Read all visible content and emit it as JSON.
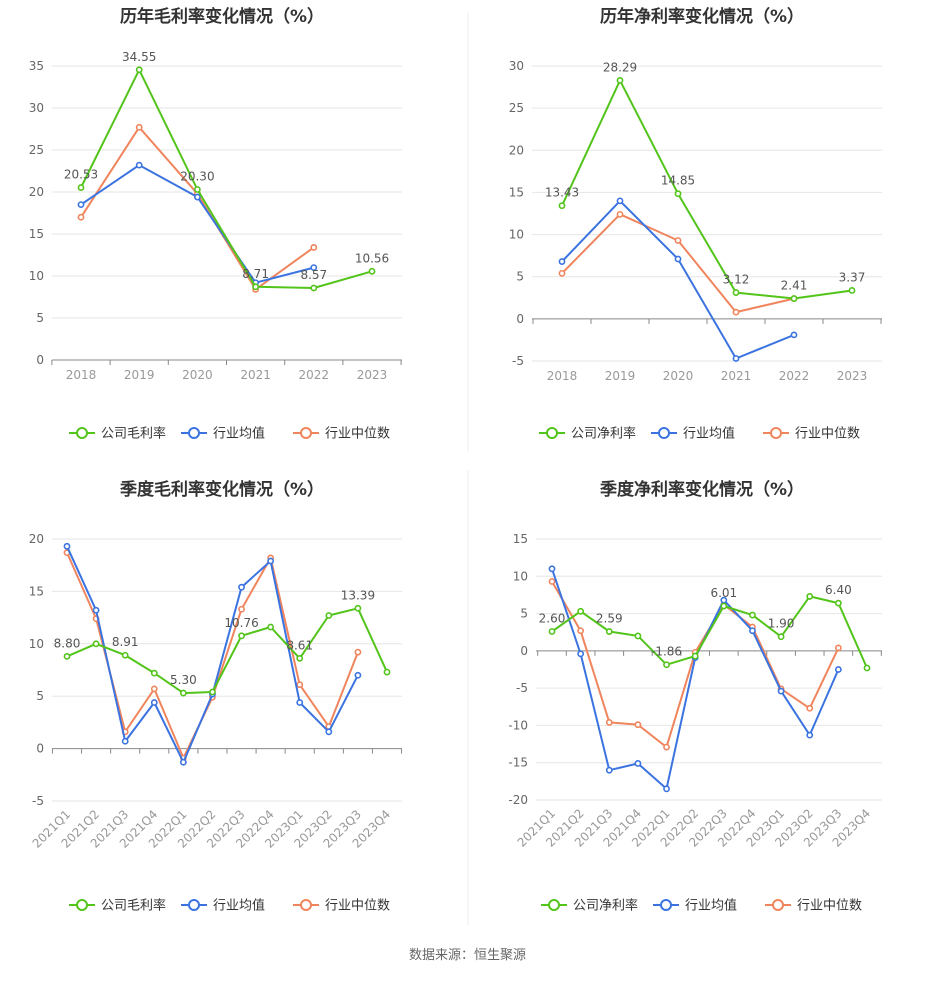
{
  "footer": "数据来源：恒生聚源",
  "colors": {
    "company": "#52c41a",
    "avg": "#3b73e0",
    "median": "#f0855d"
  },
  "chart_data": [
    {
      "type": "line",
      "title": "历年毛利率变化情况（%）",
      "categories": [
        "2018",
        "2019",
        "2020",
        "2021",
        "2022",
        "2023"
      ],
      "ylim": [
        0,
        35
      ],
      "yticks": [
        0,
        5,
        10,
        15,
        20,
        25,
        30,
        35
      ],
      "series": [
        {
          "name": "公司毛利率",
          "values": [
            20.53,
            34.55,
            20.3,
            8.71,
            8.57,
            10.56
          ],
          "labels": [
            "20.53",
            "34.55",
            "20.30",
            "8.71",
            "8.57",
            "10.56"
          ]
        },
        {
          "name": "行业均值",
          "values": [
            18.5,
            23.2,
            19.4,
            9.2,
            11.0,
            null
          ]
        },
        {
          "name": "行业中位数",
          "values": [
            17.0,
            27.7,
            19.8,
            8.4,
            13.4,
            null
          ]
        }
      ],
      "grid": true,
      "legend": "bottom"
    },
    {
      "type": "line",
      "title": "历年净利率变化情况（%）",
      "categories": [
        "2018",
        "2019",
        "2020",
        "2021",
        "2022",
        "2023"
      ],
      "ylim": [
        -5,
        30
      ],
      "yticks": [
        -5,
        0,
        5,
        10,
        15,
        20,
        25,
        30
      ],
      "series": [
        {
          "name": "公司净利率",
          "values": [
            13.43,
            28.29,
            14.85,
            3.12,
            2.41,
            3.37
          ],
          "labels": [
            "13.43",
            "28.29",
            "14.85",
            "3.12",
            "2.41",
            "3.37"
          ]
        },
        {
          "name": "行业均值",
          "values": [
            6.8,
            14.0,
            7.1,
            -4.7,
            -1.9,
            null
          ]
        },
        {
          "name": "行业中位数",
          "values": [
            5.4,
            12.4,
            9.3,
            0.8,
            2.4,
            null
          ]
        }
      ],
      "grid": true,
      "legend": "bottom"
    },
    {
      "type": "line",
      "title": "季度毛利率变化情况（%）",
      "categories": [
        "2021Q1",
        "2021Q2",
        "2021Q3",
        "2021Q4",
        "2022Q1",
        "2022Q2",
        "2022Q3",
        "2022Q4",
        "2023Q1",
        "2023Q2",
        "2023Q3",
        "2023Q4"
      ],
      "ylim": [
        -5,
        20
      ],
      "yticks": [
        -5,
        0,
        5,
        10,
        15,
        20
      ],
      "series": [
        {
          "name": "公司毛利率",
          "values": [
            8.8,
            10.0,
            8.91,
            7.2,
            5.3,
            5.4,
            10.76,
            11.6,
            8.61,
            12.7,
            13.39,
            7.3
          ],
          "labels": [
            "8.80",
            "",
            "8.91",
            "",
            "5.30",
            "",
            "10.76",
            "",
            "8.61",
            "",
            "13.39",
            ""
          ]
        },
        {
          "name": "行业均值",
          "values": [
            19.3,
            13.2,
            0.7,
            4.4,
            -1.3,
            5.2,
            15.4,
            17.9,
            4.4,
            1.6,
            7.0,
            null
          ]
        },
        {
          "name": "行业中位数",
          "values": [
            18.7,
            12.4,
            1.6,
            5.7,
            -0.9,
            4.9,
            13.3,
            18.2,
            6.1,
            2.1,
            9.2,
            null
          ]
        }
      ],
      "grid": true,
      "legend": "bottom"
    },
    {
      "type": "line",
      "title": "季度净利率变化情况（%）",
      "categories": [
        "2021Q1",
        "2021Q2",
        "2021Q3",
        "2021Q4",
        "2022Q1",
        "2022Q2",
        "2022Q3",
        "2022Q4",
        "2023Q1",
        "2023Q2",
        "2023Q3",
        "2023Q4"
      ],
      "ylim": [
        -20,
        15
      ],
      "yticks": [
        -20,
        -15,
        -10,
        -5,
        0,
        5,
        10,
        15
      ],
      "series": [
        {
          "name": "公司净利率",
          "values": [
            2.6,
            5.3,
            2.59,
            2.0,
            -1.86,
            -0.7,
            6.01,
            4.8,
            1.9,
            7.3,
            6.4,
            -2.3
          ],
          "labels": [
            "2.60",
            "",
            "2.59",
            "",
            "-1.86",
            "",
            "6.01",
            "",
            "1.90",
            "",
            "6.40",
            ""
          ]
        },
        {
          "name": "行业均值",
          "values": [
            11.0,
            -0.4,
            -16.0,
            -15.1,
            -18.5,
            -0.9,
            6.8,
            2.7,
            -5.4,
            -11.3,
            -2.5,
            null
          ]
        },
        {
          "name": "行业中位数",
          "values": [
            9.3,
            2.7,
            -9.6,
            -9.9,
            -12.9,
            -0.2,
            6.2,
            3.2,
            -5.1,
            -7.7,
            0.4,
            null
          ]
        }
      ],
      "grid": true,
      "legend": "bottom"
    }
  ]
}
